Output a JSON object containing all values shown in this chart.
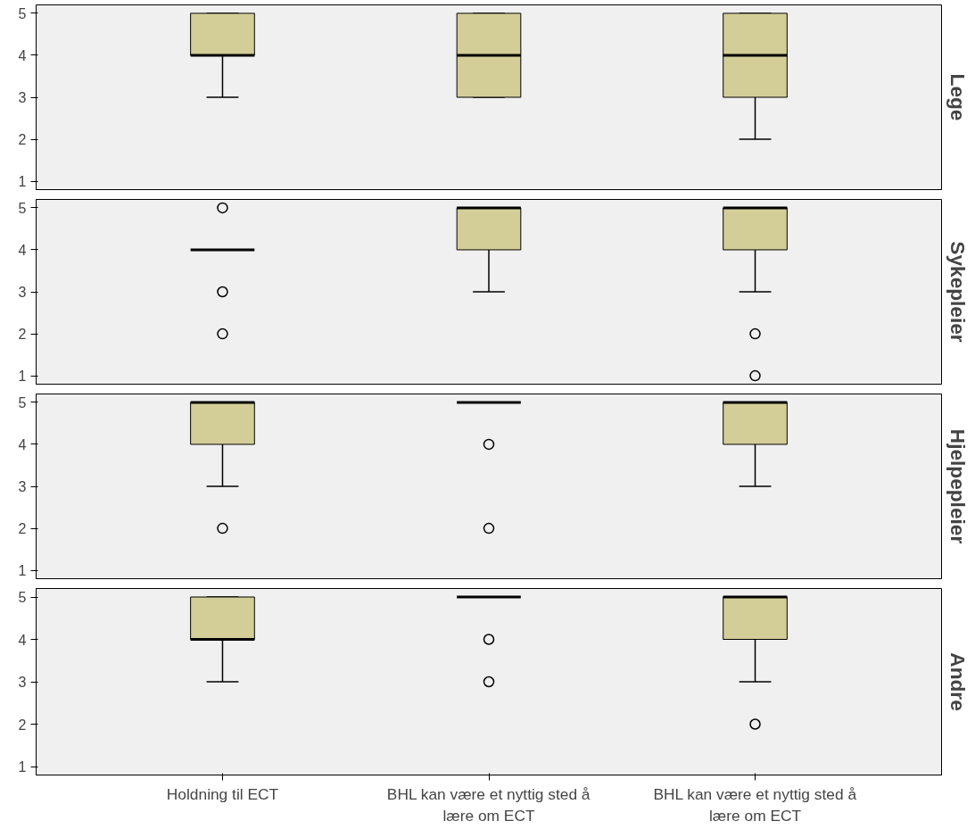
{
  "chart_data": [
    {
      "type": "box",
      "title": "Lege",
      "categories": [
        "Holdning til ECT",
        "BHL kan være et nyttig sted å lære om ECT",
        "BHL kan være et nyttig sted å lære om ECT"
      ],
      "ylim": [
        0.8,
        5.2
      ],
      "yticks": [
        1,
        2,
        3,
        4,
        5
      ],
      "tick_labels": "y",
      "grid": false,
      "boxes": [
        {
          "low": 3,
          "q1": 4,
          "median": 4,
          "q3": 5,
          "high": 5
        },
        {
          "low": 3,
          "q1": 3,
          "median": 4,
          "q3": 5,
          "high": 5
        },
        {
          "low": 2,
          "q1": 3,
          "median": 4,
          "q3": 5,
          "high": 5
        }
      ]
    },
    {
      "type": "box",
      "title": "Sykepleier",
      "categories": [
        "Holdning til ECT",
        "BHL kan være et nyttig sted å lære om ECT",
        "BHL kan være et nyttig sted å lære om ECT"
      ],
      "ylim": [
        0.8,
        5.2
      ],
      "yticks": [
        1,
        2,
        3,
        4,
        5
      ],
      "tick_labels": "y",
      "grid": false,
      "boxes": [
        {
          "low": 4,
          "q1": 4,
          "median": 4,
          "q3": 4,
          "high": 4,
          "outliers": [
            5,
            3,
            2
          ]
        },
        {
          "low": 3,
          "q1": 4,
          "median": 5,
          "q3": 5,
          "high": 5
        },
        {
          "low": 3,
          "q1": 4,
          "median": 5,
          "q3": 5,
          "high": 5,
          "outliers": [
            2,
            1
          ]
        }
      ]
    },
    {
      "type": "box",
      "title": "Hjelpepleier",
      "categories": [
        "Holdning til ECT",
        "BHL kan være et nyttig sted å lære om ECT",
        "BHL kan være et nyttig sted å lære om ECT"
      ],
      "ylim": [
        0.8,
        5.2
      ],
      "yticks": [
        1,
        2,
        3,
        4,
        5
      ],
      "tick_labels": "y",
      "grid": false,
      "boxes": [
        {
          "low": 3,
          "q1": 4,
          "median": 5,
          "q3": 5,
          "high": 5,
          "outliers": [
            2
          ]
        },
        {
          "low": 5,
          "q1": 5,
          "median": 5,
          "q3": 5,
          "high": 5,
          "outliers": [
            4,
            2
          ]
        },
        {
          "low": 3,
          "q1": 4,
          "median": 5,
          "q3": 5,
          "high": 5
        }
      ]
    },
    {
      "type": "box",
      "title": "Andre",
      "categories": [
        "Holdning til ECT",
        "BHL kan være et nyttig sted å lære om ECT",
        "BHL kan være et nyttig sted å lære om ECT"
      ],
      "ylim": [
        0.8,
        5.2
      ],
      "yticks": [
        1,
        2,
        3,
        4,
        5
      ],
      "grid": false,
      "boxes": [
        {
          "low": 3,
          "q1": 4,
          "median": 4,
          "q3": 5,
          "high": 5
        },
        {
          "low": 5,
          "q1": 5,
          "median": 5,
          "q3": 5,
          "high": 5,
          "outliers": [
            4,
            3
          ]
        },
        {
          "low": 3,
          "q1": 4,
          "median": 5,
          "q3": 5,
          "high": 5,
          "outliers": [
            2
          ]
        }
      ]
    }
  ]
}
